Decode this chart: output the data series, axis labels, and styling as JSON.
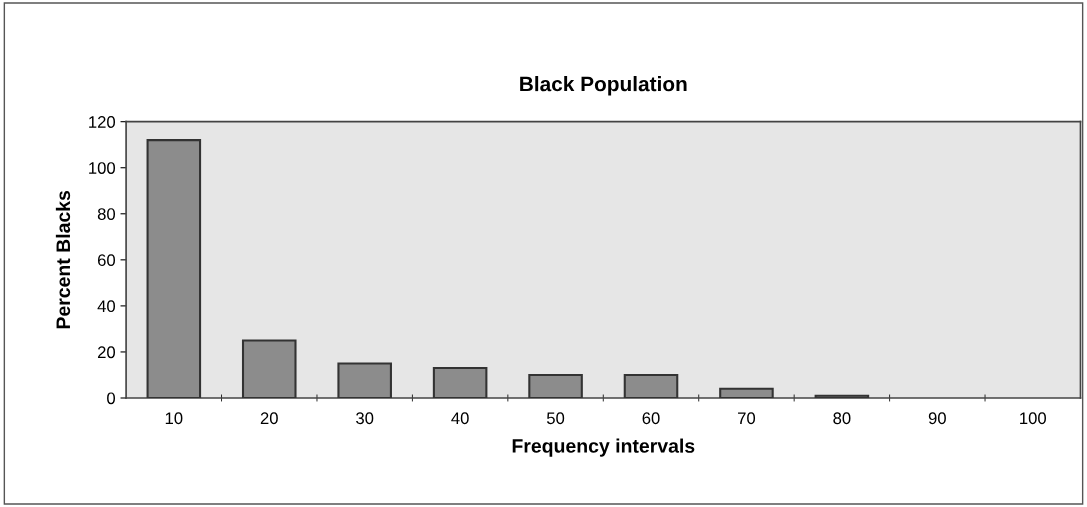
{
  "chart_data": {
    "type": "bar",
    "title": "Black Population",
    "xlabel": "Frequency intervals",
    "ylabel": "Percent Blacks",
    "categories": [
      "10",
      "20",
      "30",
      "40",
      "50",
      "60",
      "70",
      "80",
      "90",
      "100"
    ],
    "values": [
      112,
      25,
      15,
      13,
      10,
      10,
      4,
      1,
      0,
      0
    ],
    "color": "#8c8c8c",
    "ylim": [
      0,
      120
    ],
    "yticks": [
      0,
      20,
      40,
      60,
      80,
      100,
      120
    ],
    "grid": false,
    "legend": false
  }
}
